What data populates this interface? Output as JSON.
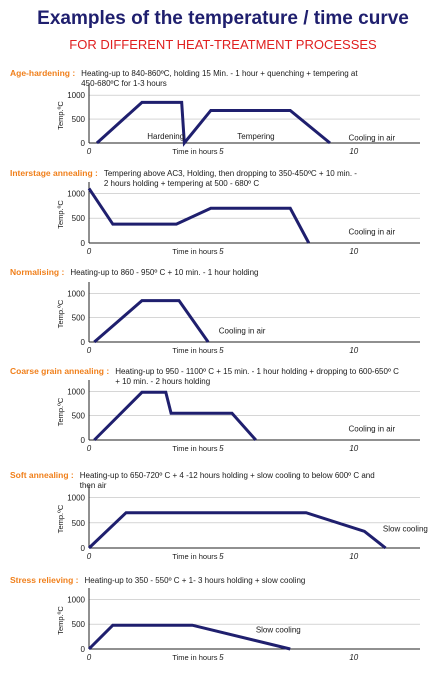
{
  "title": "Examples of the temperature / time curve",
  "subtitle": "FOR DIFFERENT HEAT-TREATMENT PROCESSES",
  "colors": {
    "title": "#1f1f6e",
    "subtitle": "#e02020",
    "process_name": "#f07f1a",
    "curve": "#1f1f6e",
    "grid": "#bdbdbd"
  },
  "chart_data": [
    {
      "type": "line",
      "process": "Age-hardening :",
      "description": [
        "Heating-up to 840-860ºC, holding 15 Min. - 1 hour + quenching + tempering at",
        "450-680ºC for 1-3 hours"
      ],
      "ylabel": "Temp.ºC",
      "xlabel": "Time in hours",
      "yticks": [
        0,
        500,
        1000
      ],
      "xticks": [
        0,
        5,
        10
      ],
      "xlim": [
        0,
        12.5
      ],
      "ylim": [
        0,
        1150
      ],
      "grid": true,
      "x": [
        0.3,
        2.0,
        3.5,
        3.6,
        4.6,
        7.6,
        9.1
      ],
      "y": [
        0,
        850,
        850,
        0,
        680,
        680,
        0
      ],
      "annotations": [
        {
          "text": "Hardening",
          "x": 2.2,
          "y": 80
        },
        {
          "text": "Tempering",
          "x": 5.6,
          "y": 80
        },
        {
          "text": "Cooling in air",
          "x": 9.8,
          "y": 50
        }
      ]
    },
    {
      "type": "line",
      "process": "Interstage annealing :",
      "description": [
        "Tempering above AC3, Holding, then dropping to 350-450ºC + 10 min. -",
        "2 hours holding + tempering at 500 - 680º C"
      ],
      "ylabel": "Temp.ºC",
      "xlabel": "Time in hours",
      "yticks": [
        0,
        500,
        1000
      ],
      "xticks": [
        0,
        5,
        10
      ],
      "xlim": [
        0,
        12.5
      ],
      "ylim": [
        0,
        1150
      ],
      "grid": true,
      "x": [
        0,
        0.9,
        3.3,
        4.6,
        7.6,
        8.3
      ],
      "y": [
        1100,
        380,
        380,
        700,
        700,
        0
      ],
      "annotations": [
        {
          "text": "Cooling in air",
          "x": 9.8,
          "y": 170
        }
      ]
    },
    {
      "type": "line",
      "process": "Normalising :",
      "description": [
        "Heating-up to 860  - 950º C + 10 min. - 1 hour holding"
      ],
      "ylabel": "Temp.ºC",
      "xlabel": "Time in hours",
      "yticks": [
        0,
        500,
        1000
      ],
      "xticks": [
        0,
        5,
        10
      ],
      "xlim": [
        0,
        12.5
      ],
      "ylim": [
        0,
        1150
      ],
      "grid": true,
      "x": [
        0.2,
        2.0,
        3.4,
        4.5
      ],
      "y": [
        0,
        850,
        850,
        0
      ],
      "annotations": [
        {
          "text": "Cooling in air",
          "x": 4.9,
          "y": 170
        }
      ]
    },
    {
      "type": "line",
      "process": "Coarse grain annealing :",
      "description": [
        "Heating-up to 950 - 1100º C + 15 min. - 1 hour holding + dropping to 600-650º C",
        "+ 10 min. - 2 hours holding"
      ],
      "ylabel": "Temp.ºC",
      "xlabel": "Time in hours",
      "yticks": [
        0,
        500,
        1000
      ],
      "xticks": [
        0,
        5,
        10
      ],
      "xlim": [
        0,
        12.5
      ],
      "ylim": [
        0,
        1150
      ],
      "grid": true,
      "x": [
        0.2,
        2.0,
        2.9,
        3.1,
        5.4,
        6.3
      ],
      "y": [
        0,
        980,
        980,
        550,
        550,
        0
      ],
      "annotations": [
        {
          "text": "Cooling in air",
          "x": 9.8,
          "y": 170
        }
      ]
    },
    {
      "type": "line",
      "process": "Soft annealing :",
      "description": [
        "Heating-up to 650-720º C + 4 -12 hours holding + slow cooling to below 600º C and",
        "then air"
      ],
      "ylabel": "Temp.ºC",
      "xlabel": "Time in hours",
      "yticks": [
        0,
        500,
        1000
      ],
      "xticks": [
        0,
        5,
        10
      ],
      "xlim": [
        0,
        12.5
      ],
      "ylim": [
        0,
        1150
      ],
      "grid": true,
      "x": [
        0,
        1.4,
        8.2,
        10.4,
        11.2
      ],
      "y": [
        0,
        700,
        700,
        330,
        0
      ],
      "annotations": [
        {
          "text": "Slow cooling",
          "x": 11.1,
          "y": 330
        }
      ]
    },
    {
      "type": "line",
      "process": "Stress relieving :",
      "description": [
        "Heating-up to 350 - 550º C + 1- 3 hours holding + slow cooling"
      ],
      "ylabel": "Temp.ºC",
      "xlabel": "Time in hours",
      "yticks": [
        0,
        500,
        1000
      ],
      "xticks": [
        0,
        5,
        10
      ],
      "xlim": [
        0,
        12.5
      ],
      "ylim": [
        0,
        1150
      ],
      "grid": true,
      "x": [
        0,
        0.9,
        3.9,
        7.6
      ],
      "y": [
        0,
        480,
        480,
        0
      ],
      "annotations": [
        {
          "text": "Slow cooling",
          "x": 6.3,
          "y": 330
        }
      ]
    }
  ]
}
